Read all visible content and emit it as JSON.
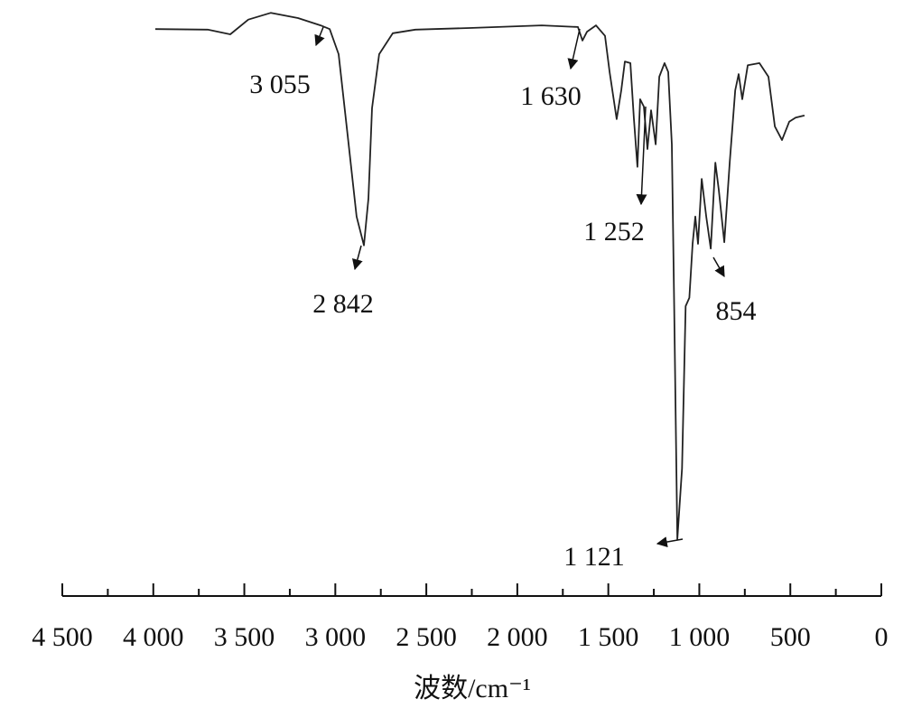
{
  "chart_data": {
    "type": "line",
    "xlabel": "波数/cm⁻¹",
    "xlim": [
      4500,
      0
    ],
    "xticks": [
      {
        "value": 4500,
        "label": "4 500"
      },
      {
        "value": 4000,
        "label": "4 000"
      },
      {
        "value": 3500,
        "label": "3 500"
      },
      {
        "value": 3000,
        "label": "3 000"
      },
      {
        "value": 2500,
        "label": "2 500"
      },
      {
        "value": 2000,
        "label": "2 000"
      },
      {
        "value": 1500,
        "label": "1 500"
      },
      {
        "value": 1000,
        "label": "1 000"
      },
      500,
      0
    ],
    "xminorticks": [
      4250,
      3750,
      3250,
      2750,
      2250,
      1750,
      1250,
      750,
      250
    ],
    "ylim": [
      0,
      100
    ],
    "color": "#222222",
    "x": [
      3989,
      3701,
      3577,
      3478,
      3354,
      3205,
      3081,
      3031,
      2982,
      2932,
      2883,
      2843,
      2818,
      2798,
      2759,
      2684,
      2560,
      2262,
      1866,
      1667,
      1642,
      1617,
      1568,
      1518,
      1493,
      1454,
      1429,
      1409,
      1379,
      1360,
      1340,
      1325,
      1305,
      1285,
      1265,
      1240,
      1220,
      1191,
      1171,
      1151,
      1138,
      1121,
      1095,
      1075,
      1055,
      1037,
      1022,
      1007,
      987,
      962,
      937,
      912,
      893,
      863,
      833,
      803,
      784,
      764,
      734,
      670,
      620,
      585,
      546,
      506,
      471,
      422
    ],
    "values": [
      97.9,
      97.8,
      96.9,
      99.7,
      101.0,
      100.0,
      98.6,
      97.9,
      93.1,
      77.6,
      62.1,
      56.6,
      65.5,
      82.8,
      93.1,
      97.1,
      97.8,
      98.1,
      98.6,
      98.3,
      95.7,
      97.4,
      98.6,
      96.6,
      89.7,
      80.7,
      86.2,
      91.7,
      91.4,
      81.0,
      71.6,
      84.5,
      83.1,
      75.0,
      82.4,
      75.9,
      88.8,
      91.4,
      89.7,
      75.9,
      45.0,
      0.5,
      14.0,
      45.0,
      46.6,
      56.9,
      62.1,
      56.9,
      69.3,
      62.1,
      56.0,
      72.4,
      67.2,
      57.2,
      72.4,
      86.2,
      89.3,
      84.5,
      91.0,
      91.4,
      88.8,
      79.3,
      76.7,
      80.2,
      81.0,
      81.4
    ],
    "annotations": [
      {
        "label": "3 055",
        "x": 3055
      },
      {
        "label": "2 842",
        "x": 2842
      },
      {
        "label": "1 630",
        "x": 1630
      },
      {
        "label": "1 252",
        "x": 1252
      },
      {
        "label": "854",
        "x": 854
      },
      {
        "label": "1 121",
        "x": 1121
      }
    ]
  }
}
